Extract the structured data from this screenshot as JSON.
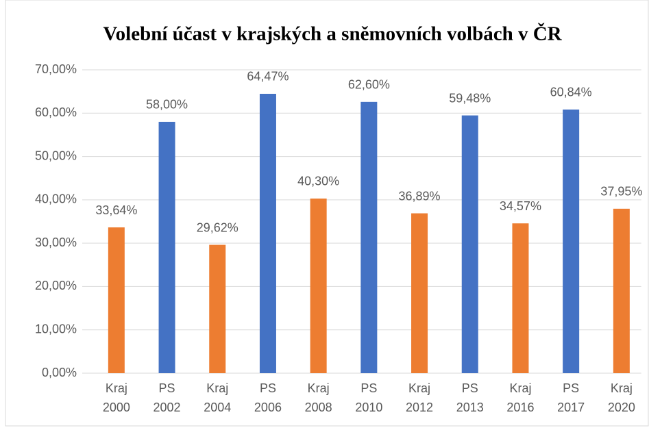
{
  "chart_data": {
    "type": "bar",
    "title": "Volební účast v krajských a sněmovních volbách v ČR",
    "categories": [
      "Kraj 2000",
      "PS 2002",
      "Kraj 2004",
      "PS 2006",
      "Kraj 2008",
      "PS 2010",
      "Kraj 2012",
      "PS 2013",
      "Kraj 2016",
      "PS 2017",
      "Kraj 2020"
    ],
    "values": [
      33.64,
      58.0,
      29.62,
      64.47,
      40.3,
      62.6,
      36.89,
      59.48,
      34.57,
      60.84,
      37.95
    ],
    "value_labels": [
      "33,64%",
      "58,00%",
      "29,62%",
      "64,47%",
      "40,30%",
      "62,60%",
      "36,89%",
      "59,48%",
      "34,57%",
      "60,84%",
      "37,95%"
    ],
    "colors": [
      "#ED7D31",
      "#4472C4",
      "#ED7D31",
      "#4472C4",
      "#ED7D31",
      "#4472C4",
      "#ED7D31",
      "#4472C4",
      "#ED7D31",
      "#4472C4",
      "#ED7D31"
    ],
    "ylim": [
      0,
      70
    ],
    "yticks": [
      {
        "value": 0,
        "label": "0,00%"
      },
      {
        "value": 10,
        "label": "10,00%"
      },
      {
        "value": 20,
        "label": "20,00%"
      },
      {
        "value": 30,
        "label": "30,00%"
      },
      {
        "value": 40,
        "label": "40,00%"
      },
      {
        "value": 50,
        "label": "50,00%"
      },
      {
        "value": 60,
        "label": "60,00%"
      },
      {
        "value": 70,
        "label": "70,00%"
      }
    ],
    "grid": true
  }
}
